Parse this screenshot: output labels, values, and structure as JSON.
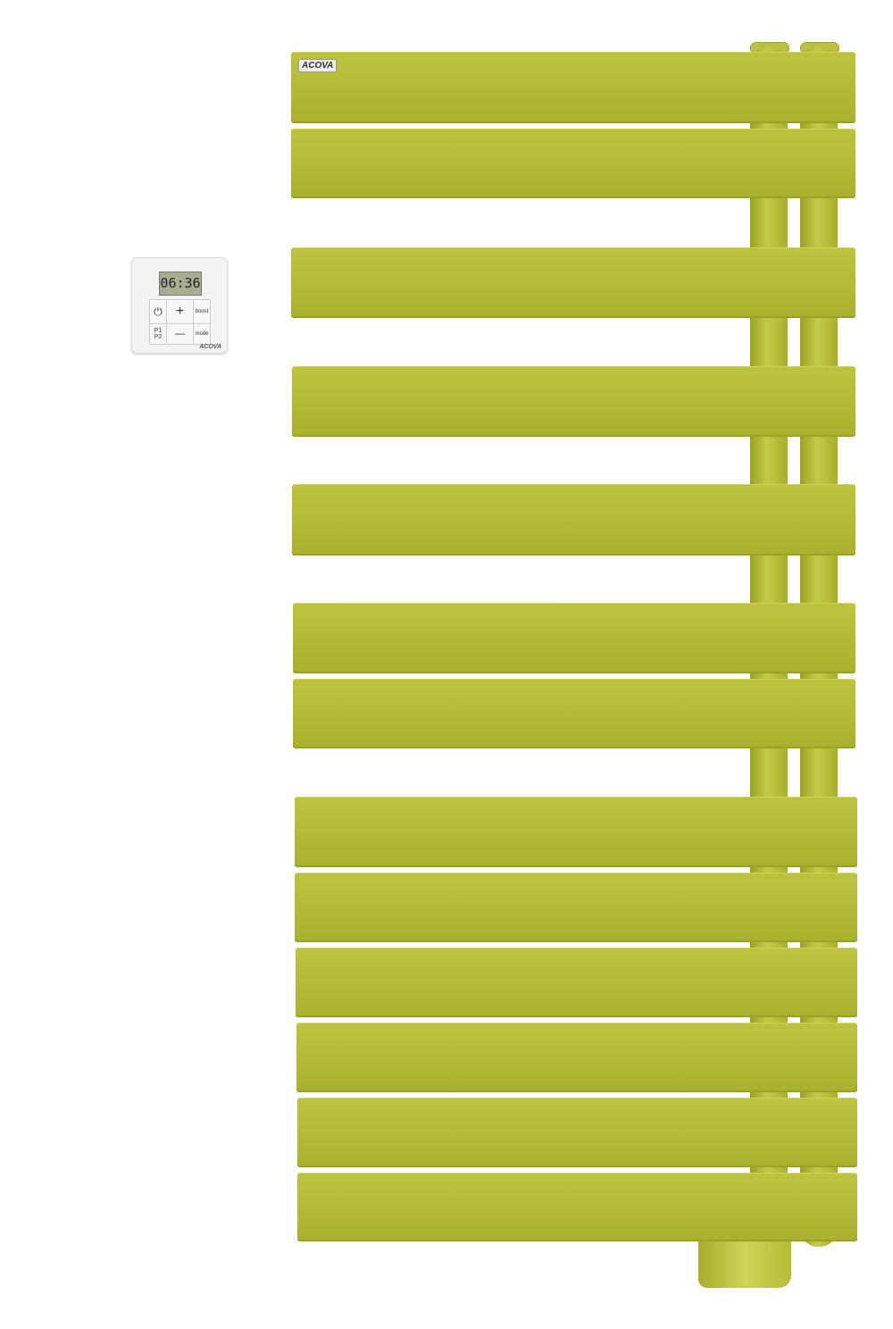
{
  "product": {
    "brand_logo": "ACOVA",
    "color": "#b3bb35",
    "bar_count": 13
  },
  "controller": {
    "display_time": "06:36",
    "buttons": {
      "power": "⏻",
      "plus": "+",
      "minus": "—",
      "p1": "P1",
      "p2": "P2",
      "boost": "boost",
      "mode": "mode"
    },
    "brand_logo": "ACOVA"
  }
}
